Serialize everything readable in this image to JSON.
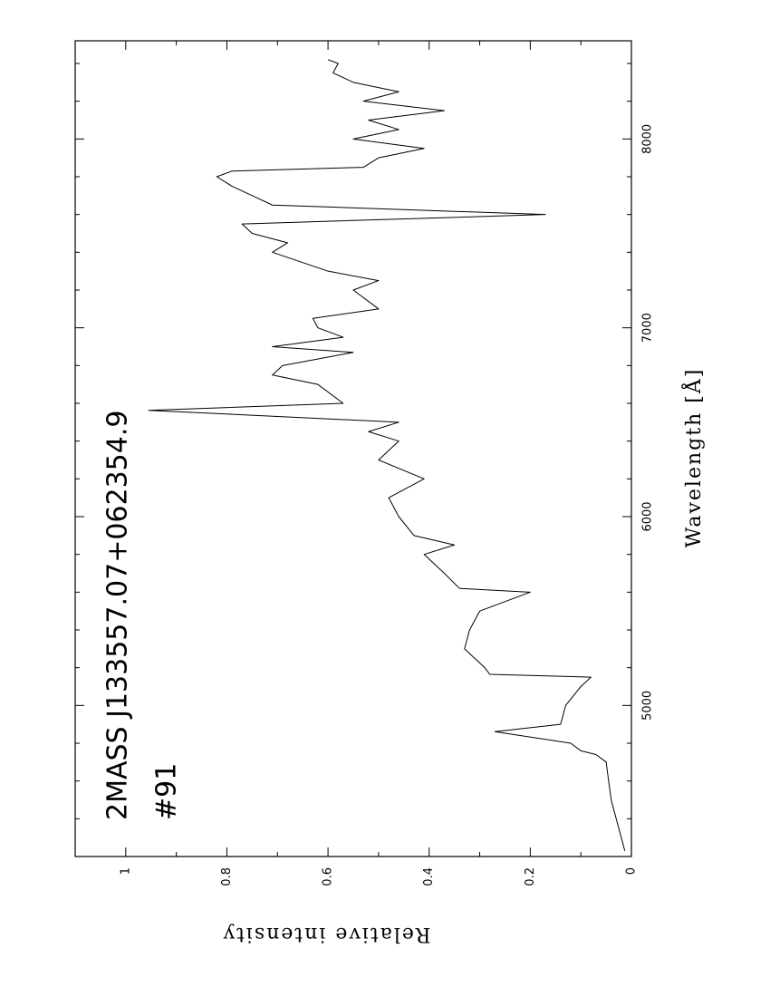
{
  "chart_data": {
    "type": "line",
    "title": "2MASS J133557.07+062354.9",
    "subtitle": "#91",
    "x_label": "Wavelength [Å]",
    "y_label": "Relative intensity",
    "x": [
      4230,
      4300,
      4400,
      4500,
      4600,
      4700,
      4740,
      4760,
      4800,
      4861,
      4900,
      5000,
      5100,
      5150,
      5165,
      5200,
      5300,
      5400,
      5500,
      5600,
      5620,
      5700,
      5800,
      5850,
      5900,
      6000,
      6100,
      6200,
      6300,
      6400,
      6450,
      6500,
      6563,
      6600,
      6700,
      6750,
      6800,
      6870,
      6900,
      6950,
      7000,
      7050,
      7100,
      7200,
      7250,
      7300,
      7400,
      7450,
      7500,
      7550,
      7600,
      7650,
      7700,
      7750,
      7800,
      7830,
      7850,
      7900,
      7950,
      8000,
      8050,
      8100,
      8150,
      8200,
      8250,
      8300,
      8350,
      8400,
      8420
    ],
    "values": [
      0.013,
      0.02,
      0.03,
      0.04,
      0.045,
      0.05,
      0.07,
      0.1,
      0.12,
      0.27,
      0.14,
      0.13,
      0.1,
      0.08,
      0.28,
      0.29,
      0.33,
      0.32,
      0.3,
      0.2,
      0.34,
      0.37,
      0.41,
      0.35,
      0.43,
      0.46,
      0.48,
      0.41,
      0.5,
      0.46,
      0.52,
      0.46,
      0.955,
      0.57,
      0.62,
      0.71,
      0.69,
      0.55,
      0.71,
      0.57,
      0.62,
      0.63,
      0.5,
      0.55,
      0.5,
      0.6,
      0.71,
      0.68,
      0.75,
      0.77,
      0.17,
      0.71,
      0.75,
      0.79,
      0.82,
      0.79,
      0.53,
      0.5,
      0.41,
      0.55,
      0.46,
      0.52,
      0.37,
      0.53,
      0.46,
      0.55,
      0.59,
      0.58,
      0.6
    ],
    "color": "#000000",
    "xlim": [
      4200,
      8520
    ],
    "xticks": [
      5000,
      6000,
      7000,
      8000
    ],
    "xminorticks": [
      4400,
      4600,
      4800,
      5200,
      5400,
      5600,
      5800,
      6200,
      6400,
      6600,
      6800,
      7200,
      7400,
      7600,
      7800,
      8200,
      8400
    ],
    "ylim": [
      0,
      1.1
    ],
    "yticks": [
      0,
      0.2,
      0.4,
      0.6,
      0.8,
      1
    ],
    "yminorticks": [
      0.1,
      0.3,
      0.5,
      0.7,
      0.9
    ],
    "rotated": true
  }
}
